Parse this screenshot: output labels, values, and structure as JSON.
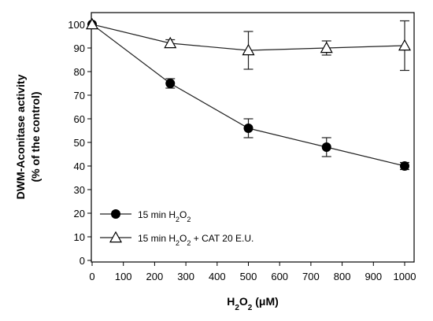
{
  "chart_data": {
    "type": "line",
    "xlabel_parts": [
      "H",
      "2",
      "O",
      "2",
      " (μM)"
    ],
    "ylabel_lines": [
      "DWM-Aconitase activity",
      "(% of the control)"
    ],
    "xlim": [
      0,
      1000
    ],
    "ylim": [
      0,
      100
    ],
    "xticks": [
      0,
      100,
      200,
      300,
      400,
      500,
      600,
      700,
      800,
      900,
      1000
    ],
    "yticks": [
      0,
      10,
      20,
      30,
      40,
      50,
      60,
      70,
      80,
      90,
      100
    ],
    "grid": false,
    "legend_position": "bottom-left",
    "series": [
      {
        "legend": [
          "15 min  H",
          "2",
          "O",
          "2",
          ""
        ],
        "marker": "filled-circle",
        "x": [
          0,
          250,
          500,
          750,
          1000
        ],
        "y": [
          100,
          75,
          56,
          48,
          40
        ],
        "err": [
          0,
          2,
          4,
          4,
          1.5
        ]
      },
      {
        "legend": [
          "15 min H",
          "2",
          "O",
          "2",
          " + CAT 20 E.U."
        ],
        "marker": "open-triangle",
        "x": [
          0,
          250,
          500,
          750,
          1000
        ],
        "y": [
          100,
          92,
          89,
          90,
          91
        ],
        "err": [
          0,
          1.5,
          8,
          3,
          10.5
        ]
      }
    ]
  }
}
